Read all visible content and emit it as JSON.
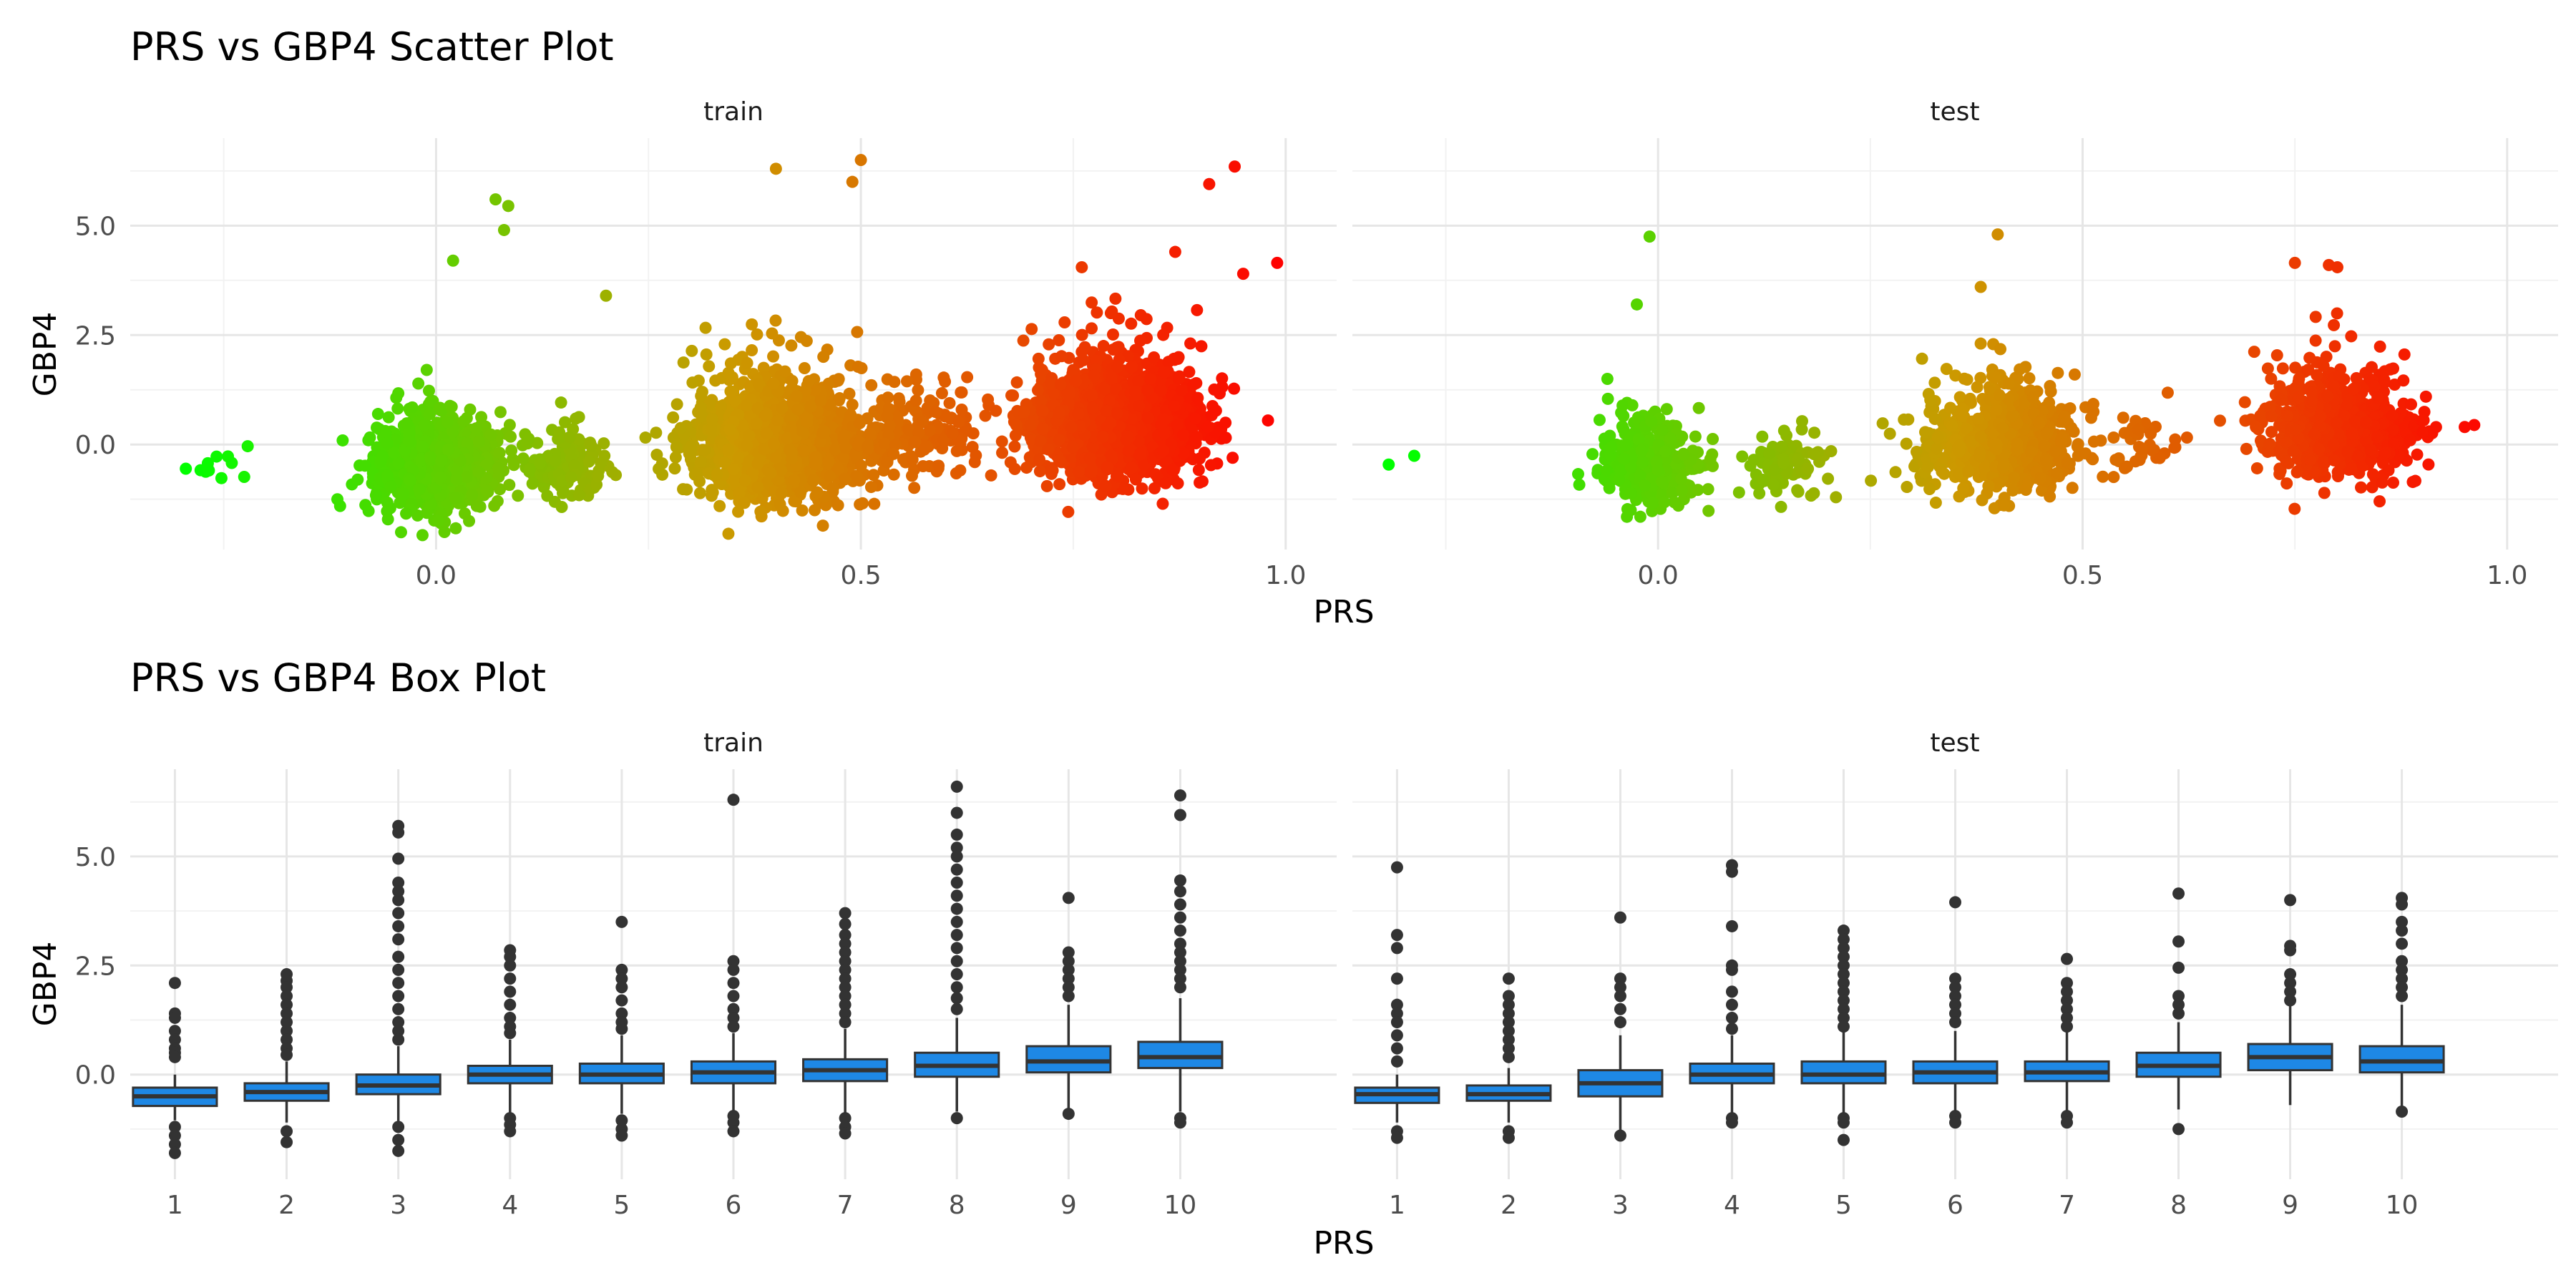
{
  "chart_data": [
    {
      "type": "scatter",
      "title": "PRS vs GBP4 Scatter Plot",
      "xlabel": "PRS",
      "ylabel": "GBP4",
      "facets": [
        "train",
        "test"
      ],
      "xlim": [
        -0.36,
        1.06
      ],
      "ylim": [
        -2.4,
        7.0
      ],
      "x_ticks": [
        0.0,
        0.5,
        1.0
      ],
      "x_tick_labels": [
        "0.0",
        "0.5",
        "1.0"
      ],
      "y_ticks": [
        0.0,
        2.5,
        5.0
      ],
      "y_tick_labels": [
        "0.0",
        "2.5",
        "5.0"
      ],
      "color_scale": {
        "low": "#00ff00",
        "mid": "#cc9900",
        "high": "#ff0000",
        "low_value": -0.3,
        "high_value": 1.0
      },
      "grid": true,
      "clusters": {
        "train": [
          {
            "x": -0.25,
            "y": -0.5,
            "sx": 0.02,
            "sy": 0.25,
            "n": 12
          },
          {
            "x": 0.0,
            "y": -0.5,
            "sx": 0.035,
            "sy": 0.5,
            "n": 900
          },
          {
            "x": 0.15,
            "y": -0.5,
            "sx": 0.025,
            "sy": 0.35,
            "n": 160
          },
          {
            "x": 0.4,
            "y": 0.0,
            "sx": 0.05,
            "sy": 0.6,
            "n": 1400
          },
          {
            "x": 0.57,
            "y": 0.2,
            "sx": 0.035,
            "sy": 0.45,
            "n": 160
          },
          {
            "x": 0.8,
            "y": 0.5,
            "sx": 0.05,
            "sy": 0.6,
            "n": 1400
          }
        ],
        "test": [
          {
            "x": -0.3,
            "y": -0.45,
            "sx": 0.012,
            "sy": 0.1,
            "n": 2
          },
          {
            "x": -0.01,
            "y": -0.5,
            "sx": 0.03,
            "sy": 0.45,
            "n": 400
          },
          {
            "x": 0.15,
            "y": -0.5,
            "sx": 0.025,
            "sy": 0.35,
            "n": 90
          },
          {
            "x": 0.4,
            "y": 0.0,
            "sx": 0.045,
            "sy": 0.55,
            "n": 650
          },
          {
            "x": 0.57,
            "y": 0.1,
            "sx": 0.025,
            "sy": 0.3,
            "n": 40
          },
          {
            "x": 0.8,
            "y": 0.4,
            "sx": 0.045,
            "sy": 0.55,
            "n": 650
          }
        ]
      },
      "highlights": {
        "train": [
          [
            0.07,
            5.6
          ],
          [
            0.085,
            5.45
          ],
          [
            0.08,
            4.9
          ],
          [
            0.02,
            4.2
          ],
          [
            0.2,
            3.4
          ],
          [
            0.4,
            6.3
          ],
          [
            0.5,
            6.5
          ],
          [
            0.49,
            6.0
          ],
          [
            0.91,
            5.95
          ],
          [
            0.94,
            6.35
          ],
          [
            0.99,
            4.15
          ],
          [
            0.95,
            3.9
          ],
          [
            0.87,
            4.4
          ],
          [
            0.76,
            4.05
          ]
        ],
        "test": [
          [
            -0.01,
            4.75
          ],
          [
            -0.025,
            3.2
          ],
          [
            0.4,
            4.8
          ],
          [
            0.38,
            3.6
          ],
          [
            0.79,
            4.1
          ],
          [
            0.8,
            4.05
          ],
          [
            0.75,
            4.15
          ],
          [
            0.95,
            0.4
          ],
          [
            0.9,
            0.55
          ]
        ]
      }
    },
    {
      "type": "box",
      "title": "PRS vs GBP4 Box Plot",
      "xlabel": "PRS",
      "ylabel": "GBP4",
      "facets": [
        "train",
        "test"
      ],
      "categories": [
        "1",
        "2",
        "3",
        "4",
        "5",
        "6",
        "7",
        "8",
        "9",
        "10"
      ],
      "ylim": [
        -2.4,
        7.0
      ],
      "y_ticks": [
        0.0,
        2.5,
        5.0
      ],
      "y_tick_labels": [
        "0.0",
        "2.5",
        "5.0"
      ],
      "box_color": "#1e88e5",
      "grid": true,
      "boxes": {
        "train": [
          {
            "q1": -0.72,
            "median": -0.5,
            "q3": -0.3,
            "lo": -1.05,
            "hi": 0.0,
            "out": [
              2.1,
              1.4,
              1.3,
              1.0,
              0.8,
              0.6,
              0.5,
              0.4,
              -1.2,
              -1.4,
              -1.6,
              -1.8
            ]
          },
          {
            "q1": -0.6,
            "median": -0.4,
            "q3": -0.2,
            "lo": -1.1,
            "hi": 0.3,
            "out": [
              2.3,
              2.15,
              2.0,
              1.8,
              1.6,
              1.4,
              1.2,
              1.0,
              0.8,
              0.6,
              0.45,
              -1.3,
              -1.55
            ]
          },
          {
            "q1": -0.45,
            "median": -0.25,
            "q3": 0.0,
            "lo": -1.1,
            "hi": 0.65,
            "out": [
              5.7,
              5.55,
              4.95,
              4.4,
              4.2,
              4.0,
              3.7,
              3.4,
              3.1,
              2.7,
              2.4,
              2.1,
              1.8,
              1.5,
              1.2,
              1.0,
              0.8,
              -1.2,
              -1.5,
              -1.75
            ]
          },
          {
            "q1": -0.2,
            "median": 0.0,
            "q3": 0.2,
            "lo": -0.9,
            "hi": 0.8,
            "out": [
              2.85,
              2.7,
              2.5,
              2.2,
              1.9,
              1.6,
              1.3,
              1.1,
              0.95,
              -1.0,
              -1.15,
              -1.3
            ]
          },
          {
            "q1": -0.2,
            "median": 0.0,
            "q3": 0.25,
            "lo": -0.9,
            "hi": 0.9,
            "out": [
              3.5,
              2.4,
              2.2,
              2.0,
              1.7,
              1.4,
              1.2,
              1.05,
              -1.05,
              -1.25,
              -1.4
            ]
          },
          {
            "q1": -0.2,
            "median": 0.05,
            "q3": 0.3,
            "lo": -0.85,
            "hi": 0.95,
            "out": [
              6.3,
              2.6,
              2.4,
              2.1,
              1.8,
              1.5,
              1.3,
              1.1,
              -0.95,
              -1.1,
              -1.3
            ]
          },
          {
            "q1": -0.15,
            "median": 0.1,
            "q3": 0.35,
            "lo": -0.9,
            "hi": 1.05,
            "out": [
              3.7,
              3.45,
              3.2,
              3.0,
              2.8,
              2.6,
              2.4,
              2.2,
              2.0,
              1.8,
              1.6,
              1.4,
              1.2,
              -1.0,
              -1.2,
              -1.35
            ]
          },
          {
            "q1": -0.05,
            "median": 0.2,
            "q3": 0.5,
            "lo": -0.85,
            "hi": 1.3,
            "out": [
              6.6,
              6.0,
              5.5,
              5.2,
              5.0,
              4.7,
              4.4,
              4.1,
              3.8,
              3.5,
              3.2,
              2.9,
              2.6,
              2.3,
              2.0,
              1.75,
              1.5,
              -1.0
            ]
          },
          {
            "q1": 0.05,
            "median": 0.3,
            "q3": 0.65,
            "lo": -0.85,
            "hi": 1.6,
            "out": [
              4.05,
              2.8,
              2.6,
              2.4,
              2.2,
              2.0,
              1.8,
              -0.9
            ]
          },
          {
            "q1": 0.15,
            "median": 0.4,
            "q3": 0.75,
            "lo": -0.85,
            "hi": 1.75,
            "out": [
              6.4,
              5.95,
              4.45,
              4.2,
              3.9,
              3.6,
              3.3,
              3.0,
              2.8,
              2.6,
              2.4,
              2.2,
              2.0,
              -1.0,
              -1.1
            ]
          }
        ],
        "test": [
          {
            "q1": -0.65,
            "median": -0.45,
            "q3": -0.3,
            "lo": -1.1,
            "hi": 0.0,
            "out": [
              4.75,
              3.2,
              2.9,
              2.2,
              1.6,
              1.4,
              1.2,
              0.9,
              0.6,
              0.3,
              -1.3,
              -1.45
            ]
          },
          {
            "q1": -0.6,
            "median": -0.45,
            "q3": -0.25,
            "lo": -1.1,
            "hi": 0.15,
            "out": [
              2.2,
              1.8,
              1.6,
              1.4,
              1.2,
              1.0,
              0.8,
              0.6,
              0.4,
              -1.3,
              -1.45
            ]
          },
          {
            "q1": -0.5,
            "median": -0.2,
            "q3": 0.1,
            "lo": -1.3,
            "hi": 0.9,
            "out": [
              3.6,
              2.2,
              2.0,
              1.8,
              1.5,
              1.2,
              -1.4
            ]
          },
          {
            "q1": -0.2,
            "median": 0.0,
            "q3": 0.25,
            "lo": -0.9,
            "hi": 0.9,
            "out": [
              4.8,
              4.65,
              3.4,
              2.5,
              2.4,
              1.9,
              1.6,
              1.3,
              1.05,
              -1.0,
              -1.1
            ]
          },
          {
            "q1": -0.2,
            "median": 0.0,
            "q3": 0.3,
            "lo": -0.9,
            "hi": 1.0,
            "out": [
              3.3,
              3.1,
              2.9,
              2.7,
              2.5,
              2.3,
              2.1,
              1.9,
              1.7,
              1.5,
              1.3,
              1.1,
              -1.0,
              -1.1,
              -1.5
            ]
          },
          {
            "q1": -0.2,
            "median": 0.05,
            "q3": 0.3,
            "lo": -0.85,
            "hi": 1.0,
            "out": [
              3.95,
              2.2,
              2.0,
              1.8,
              1.6,
              1.4,
              1.2,
              -0.95,
              -1.1
            ]
          },
          {
            "q1": -0.15,
            "median": 0.05,
            "q3": 0.3,
            "lo": -0.85,
            "hi": 1.0,
            "out": [
              2.65,
              2.1,
              1.9,
              1.7,
              1.5,
              1.3,
              1.1,
              -0.95,
              -1.1
            ]
          },
          {
            "q1": -0.05,
            "median": 0.2,
            "q3": 0.5,
            "lo": -0.8,
            "hi": 1.2,
            "out": [
              4.15,
              3.05,
              2.45,
              1.8,
              1.6,
              1.4,
              -1.25
            ]
          },
          {
            "q1": 0.1,
            "median": 0.4,
            "q3": 0.7,
            "lo": -0.7,
            "hi": 1.6,
            "out": [
              4.0,
              2.95,
              2.85,
              2.3,
              2.1,
              1.9,
              1.7
            ]
          },
          {
            "q1": 0.05,
            "median": 0.3,
            "q3": 0.65,
            "lo": -0.8,
            "hi": 1.6,
            "out": [
              4.05,
              3.9,
              3.5,
              3.3,
              3.0,
              2.6,
              2.4,
              2.2,
              2.0,
              1.8,
              -0.85
            ]
          }
        ]
      }
    }
  ]
}
